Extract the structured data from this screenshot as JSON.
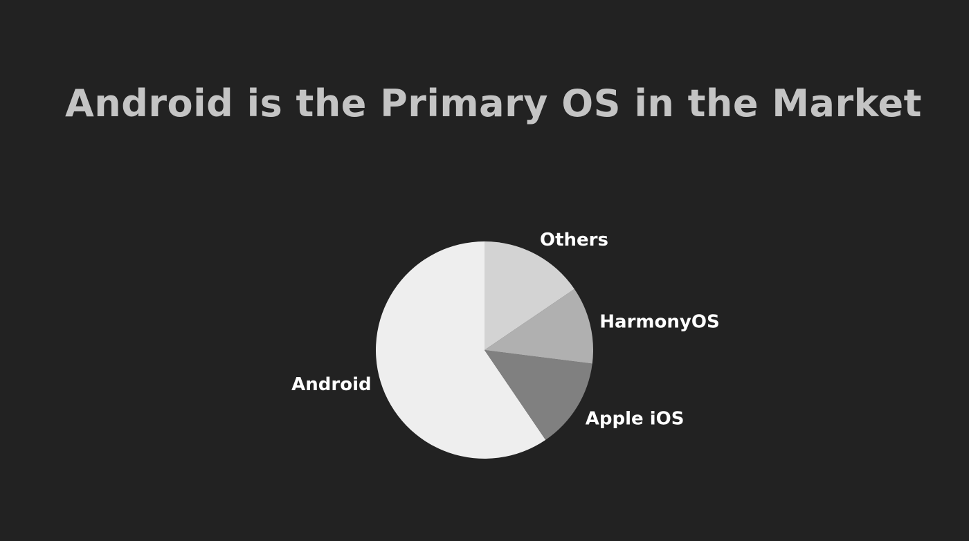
{
  "slide": {
    "title": "Android is the Primary OS in the Market"
  },
  "chart_data": {
    "type": "pie",
    "title": "Android is the Primary OS in the Market",
    "start_angle_deg": 0,
    "direction": "counterclockwise",
    "slices": [
      {
        "label": "Android",
        "value": 59.5,
        "color": "#eeeeee"
      },
      {
        "label": "Apple iOS",
        "value": 13.5,
        "color": "#808080"
      },
      {
        "label": "HarmonyOS",
        "value": 11.5,
        "color": "#b0b0b0"
      },
      {
        "label": "Others",
        "value": 15.5,
        "color": "#d3d3d3"
      }
    ]
  }
}
